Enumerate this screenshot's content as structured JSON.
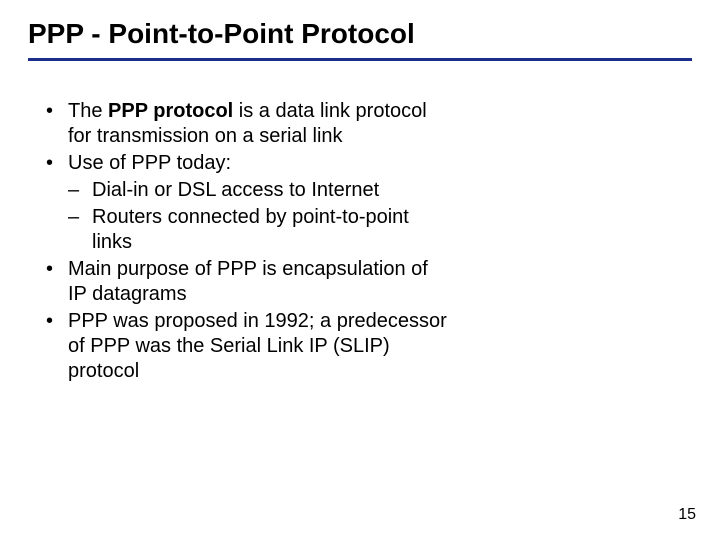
{
  "slide": {
    "title": "PPP -  Point-to-Point Protocol",
    "underline_color": "#1a2e8a",
    "background_color": "#ffffff",
    "title_fontsize": 28,
    "body_fontsize": 20,
    "text_color": "#000000",
    "page_number": "15",
    "bullets": [
      {
        "prefix": "The ",
        "bold": "PPP protocol",
        "suffix": " is a data link protocol for transmission on a serial link"
      },
      {
        "text": "Use of PPP today:",
        "sub": [
          {
            "text": "Dial-in or DSL access to Internet"
          },
          {
            "text": "Routers connected by point-to-point links"
          }
        ]
      },
      {
        "text": "Main purpose of PPP is encapsulation of IP datagrams"
      },
      {
        "text": "PPP was proposed in 1992; a predecessor of PPP was  the Serial Link IP (SLIP) protocol"
      }
    ]
  }
}
